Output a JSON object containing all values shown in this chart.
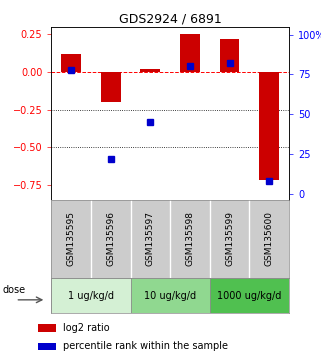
{
  "title": "GDS2924 / 6891",
  "samples": [
    "GSM135595",
    "GSM135596",
    "GSM135597",
    "GSM135598",
    "GSM135599",
    "GSM135600"
  ],
  "log2_ratio": [
    0.12,
    -0.2,
    0.02,
    0.25,
    0.22,
    -0.72
  ],
  "percentile_rank": [
    78,
    22,
    45,
    80,
    82,
    8
  ],
  "dose_groups": [
    {
      "label": "1 ug/kg/d",
      "color": "#d4f0d4",
      "start": 0,
      "end": 2
    },
    {
      "label": "10 ug/kg/d",
      "color": "#90d890",
      "start": 2,
      "end": 4
    },
    {
      "label": "1000 ug/kg/d",
      "color": "#50c050",
      "start": 4,
      "end": 6
    }
  ],
  "ylim_left": [
    -0.85,
    0.3
  ],
  "ylim_right": [
    -3.9375,
    105
  ],
  "left_yticks": [
    -0.75,
    -0.5,
    -0.25,
    0.0,
    0.25
  ],
  "right_yticks": [
    0,
    25,
    50,
    75,
    100
  ],
  "hlines": [
    0.0,
    -0.25,
    -0.5
  ],
  "hline_styles": [
    "--",
    ":",
    ":"
  ],
  "hline_colors": [
    "red",
    "black",
    "black"
  ],
  "bar_color": "#cc0000",
  "dot_color": "#0000cc",
  "bar_width": 0.5,
  "dot_size": 4,
  "legend_bar_label": "log2 ratio",
  "legend_dot_label": "percentile rank within the sample",
  "dose_label": "dose",
  "background_color": "#ffffff",
  "gsm_bg": "#cccccc"
}
